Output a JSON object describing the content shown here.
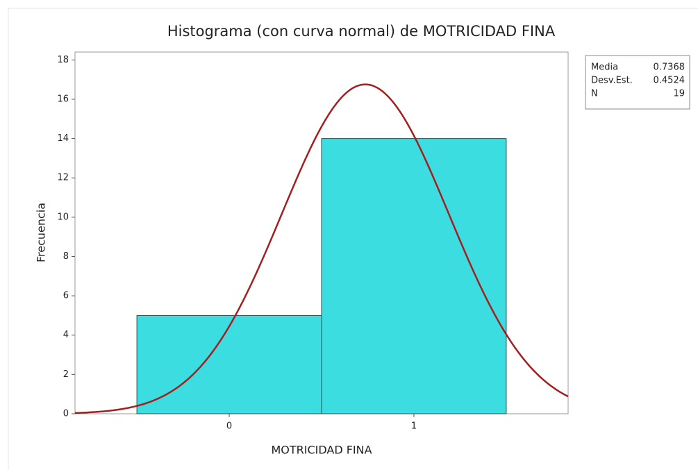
{
  "chart_data": {
    "type": "histogram",
    "title": "Histograma (con curva normal) de MOTRICIDAD FINA",
    "x_label": "MOTRICIDAD FINA",
    "y_label": "Frecuencia",
    "bins": [
      -0.5,
      0.5,
      1.5
    ],
    "counts": [
      5,
      14
    ],
    "color": "#3cdde0",
    "curve_color": "#a31f1f",
    "xlim": [
      -0.835,
      1.835
    ],
    "ylim": [
      0,
      18.4
    ],
    "xticks": [
      0,
      1
    ],
    "yticks": [
      0,
      2,
      4,
      6,
      8,
      10,
      12,
      14,
      16,
      18
    ],
    "stats": [
      {
        "label": "Media",
        "value": 0.7368
      },
      {
        "label": "Desv.Est.",
        "value": 0.4524
      },
      {
        "label": "N",
        "value": 19
      }
    ]
  }
}
